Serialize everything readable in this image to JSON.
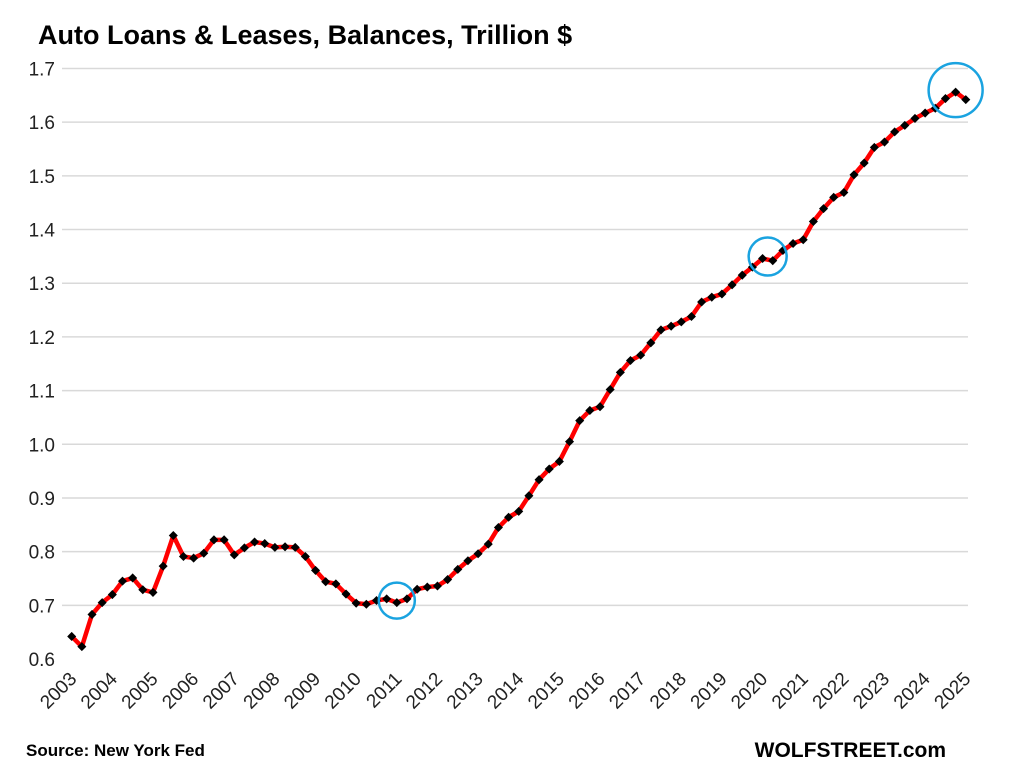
{
  "chart_data": {
    "type": "line",
    "title": "Auto Loans & Leases, Balances, Trillion $",
    "source": "Source: New York Fed",
    "brand": "WOLFSTREET.com",
    "xlabel": "",
    "ylabel": "",
    "ylim": [
      0.6,
      1.7
    ],
    "yticks": [
      "0.6",
      "0.7",
      "0.8",
      "0.9",
      "1.0",
      "1.1",
      "1.2",
      "1.3",
      "1.4",
      "1.5",
      "1.6",
      "1.7"
    ],
    "xticks": [
      "2003",
      "2004",
      "2005",
      "2006",
      "2007",
      "2008",
      "2009",
      "2010",
      "2011",
      "2012",
      "2013",
      "2014",
      "2015",
      "2016",
      "2017",
      "2018",
      "2019",
      "2020",
      "2021",
      "2022",
      "2023",
      "2024",
      "2025"
    ],
    "x_frequency": "quarterly, 2003 Q1 to 2025 Q1",
    "grid": "horizontal",
    "colors": {
      "line": "#ff0000",
      "markers": "#000000",
      "highlight_circles": "#1aa3e0",
      "grid": "#d9d9d9"
    },
    "highlights": [
      "2011 Q1",
      "2020 Q1-Q2",
      "2024 Q4"
    ],
    "values": [
      0.642,
      0.623,
      0.683,
      0.705,
      0.72,
      0.745,
      0.751,
      0.729,
      0.724,
      0.773,
      0.83,
      0.791,
      0.788,
      0.797,
      0.822,
      0.822,
      0.794,
      0.807,
      0.818,
      0.815,
      0.808,
      0.809,
      0.808,
      0.791,
      0.765,
      0.744,
      0.74,
      0.721,
      0.704,
      0.702,
      0.709,
      0.712,
      0.705,
      0.712,
      0.73,
      0.734,
      0.736,
      0.748,
      0.767,
      0.783,
      0.796,
      0.814,
      0.845,
      0.864,
      0.875,
      0.904,
      0.934,
      0.954,
      0.968,
      1.005,
      1.044,
      1.063,
      1.07,
      1.102,
      1.134,
      1.156,
      1.166,
      1.189,
      1.213,
      1.22,
      1.228,
      1.238,
      1.265,
      1.274,
      1.28,
      1.297,
      1.315,
      1.33,
      1.346,
      1.342,
      1.361,
      1.374,
      1.381,
      1.415,
      1.439,
      1.46,
      1.469,
      1.502,
      1.524,
      1.553,
      1.563,
      1.582,
      1.594,
      1.607,
      1.617,
      1.626,
      1.644,
      1.656,
      1.642
    ]
  }
}
